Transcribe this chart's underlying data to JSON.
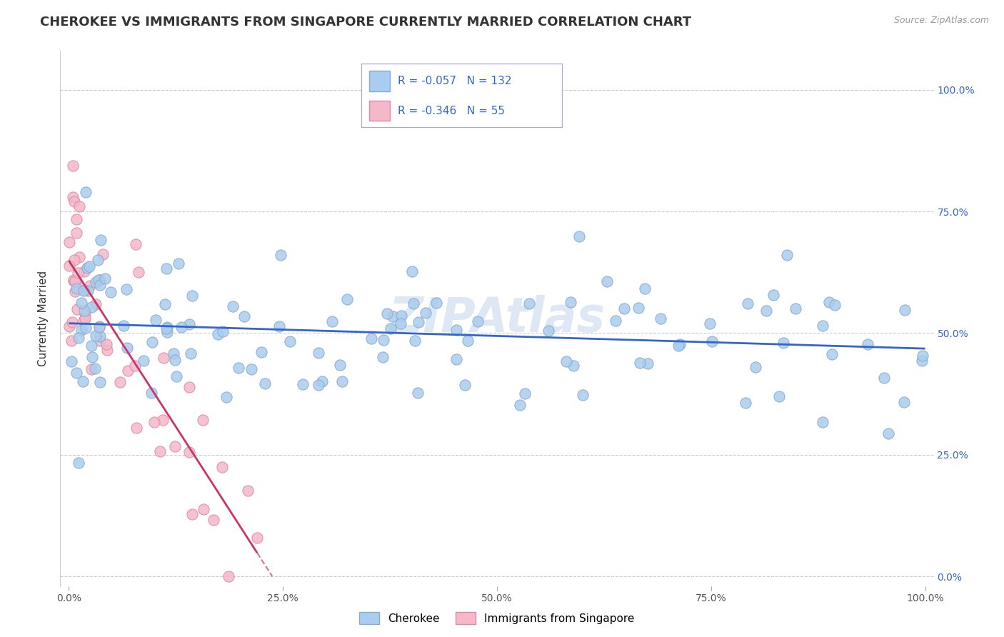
{
  "title": "CHEROKEE VS IMMIGRANTS FROM SINGAPORE CURRENTLY MARRIED CORRELATION CHART",
  "source": "Source: ZipAtlas.com",
  "ylabel": "Currently Married",
  "background_color": "#ffffff",
  "grid_color": "#cccccc",
  "cherokee_color": "#aaccee",
  "cherokee_edge": "#88aacc",
  "singapore_color": "#f4b8c8",
  "singapore_edge": "#dd88aa",
  "cherokee_R": -0.057,
  "cherokee_N": 132,
  "singapore_R": -0.346,
  "singapore_N": 55,
  "legend_R_color": "#3366cc",
  "legend_box_cherokee": "#aaccee",
  "legend_box_singapore": "#f4b8c8",
  "right_tick_color": "#3366cc",
  "watermark_color": "#c8d8ee"
}
